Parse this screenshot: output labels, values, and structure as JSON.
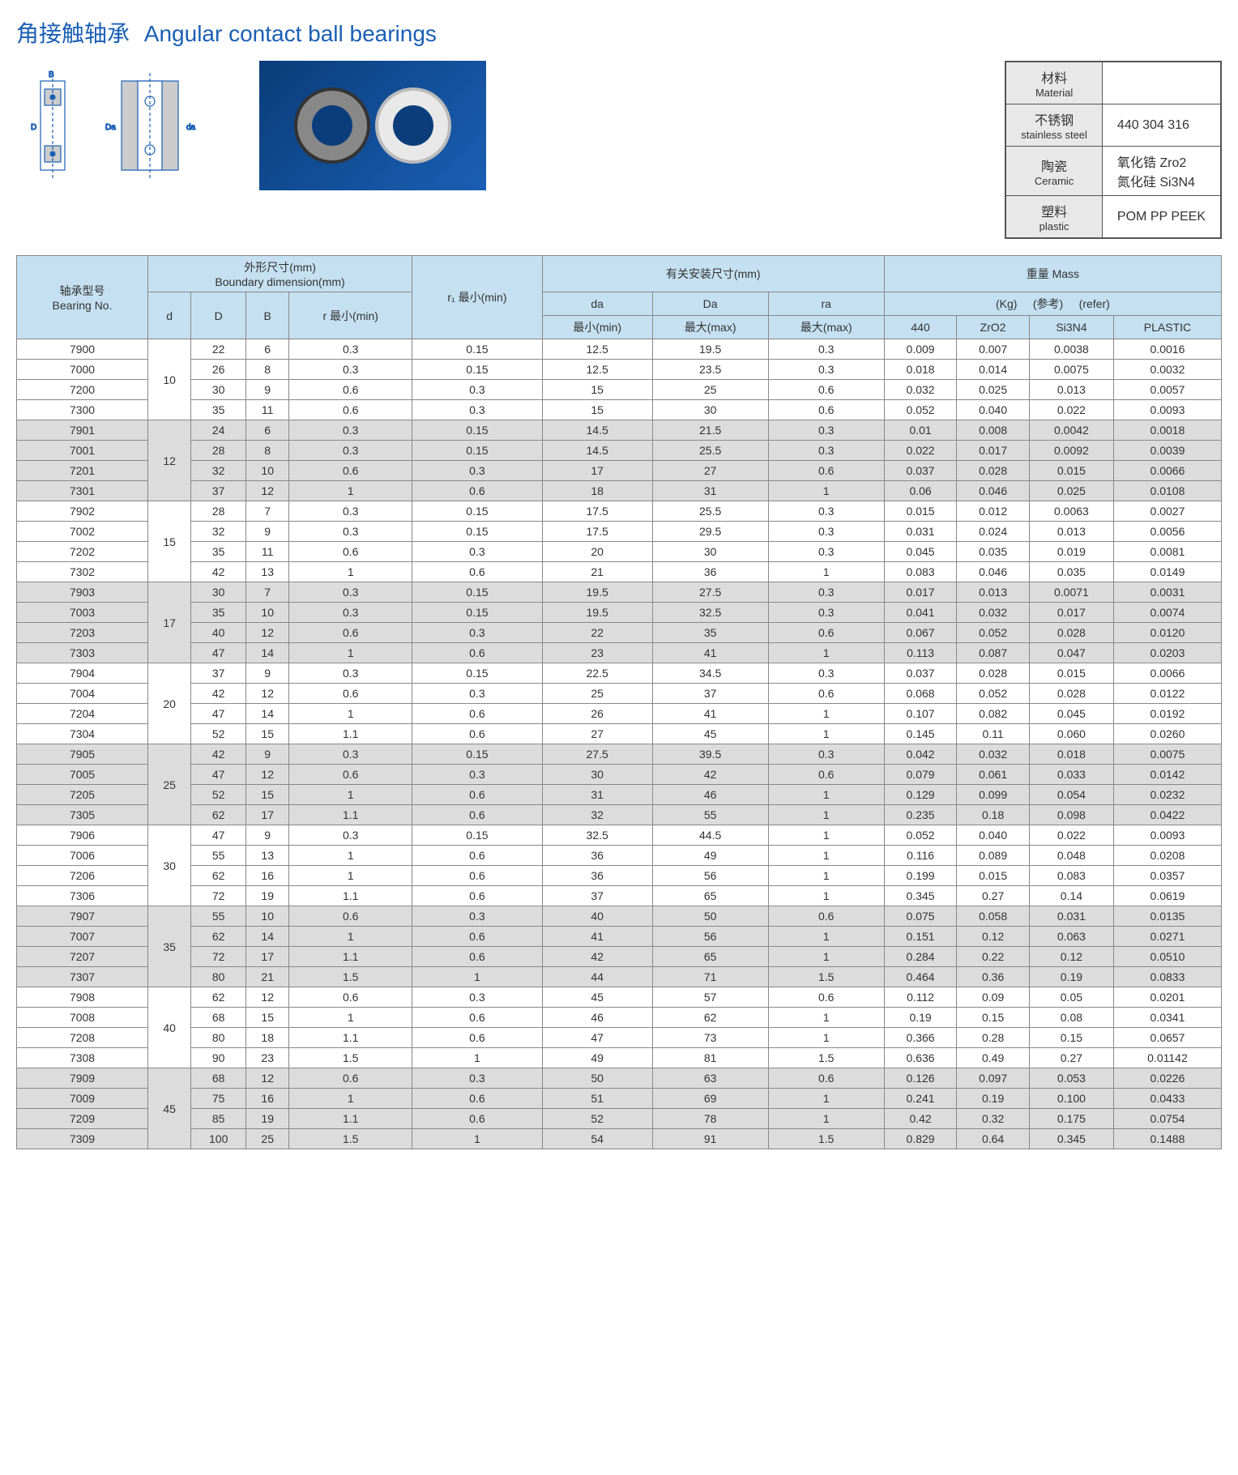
{
  "title_cn": "角接触轴承",
  "title_en": "Angular contact ball bearings",
  "colors": {
    "title": "#1a5fb4",
    "header_bg": "#c5e0f0",
    "shade_bg": "#dcdcdc",
    "border": "#888888"
  },
  "material_table": {
    "rows": [
      {
        "label_cn": "材料",
        "label_en": "Material",
        "value": ""
      },
      {
        "label_cn": "不锈钢",
        "label_en": "stainless steel",
        "value": "440 304 316"
      },
      {
        "label_cn": "陶瓷",
        "label_en": "Ceramic",
        "value": "氧化锆 Zro2\n氮化硅 Si3N4"
      },
      {
        "label_cn": "塑料",
        "label_en": "plastic",
        "value": "POM PP PEEK"
      }
    ]
  },
  "main_table": {
    "headers": {
      "bearing_no_cn": "轴承型号",
      "bearing_no_en": "Bearing No.",
      "boundary_cn": "外形尺寸(mm)",
      "boundary_en": "Boundary dimension(mm)",
      "d": "d",
      "D": "D",
      "B": "B",
      "r_min": "r 最小(min)",
      "r1_min": "r₁ 最小(min)",
      "mounting_cn": "有关安装尺寸(mm)",
      "da": "da",
      "Da": "Da",
      "ra": "ra",
      "da_min": "最小(min)",
      "Da_max": "最大(max)",
      "ra_max": "最大(max)",
      "mass_cn": "重量 Mass",
      "kg": "(Kg)",
      "ref_cn": "(参考)",
      "ref_en": "(refer)",
      "c_440": "440",
      "c_zro2": "ZrO2",
      "c_si3n4": "Si3N4",
      "c_plastic": "PLASTIC"
    },
    "groups": [
      {
        "d": "10",
        "shade": false,
        "rows": [
          {
            "no": "7900",
            "D": "22",
            "B": "6",
            "r": "0.3",
            "r1": "0.15",
            "da": "12.5",
            "Da": "19.5",
            "ra": "0.3",
            "m440": "0.009",
            "zro2": "0.007",
            "si3n4": "0.0038",
            "plastic": "0.0016"
          },
          {
            "no": "7000",
            "D": "26",
            "B": "8",
            "r": "0.3",
            "r1": "0.15",
            "da": "12.5",
            "Da": "23.5",
            "ra": "0.3",
            "m440": "0.018",
            "zro2": "0.014",
            "si3n4": "0.0075",
            "plastic": "0.0032"
          },
          {
            "no": "7200",
            "D": "30",
            "B": "9",
            "r": "0.6",
            "r1": "0.3",
            "da": "15",
            "Da": "25",
            "ra": "0.6",
            "m440": "0.032",
            "zro2": "0.025",
            "si3n4": "0.013",
            "plastic": "0.0057"
          },
          {
            "no": "7300",
            "D": "35",
            "B": "11",
            "r": "0.6",
            "r1": "0.3",
            "da": "15",
            "Da": "30",
            "ra": "0.6",
            "m440": "0.052",
            "zro2": "0.040",
            "si3n4": "0.022",
            "plastic": "0.0093"
          }
        ]
      },
      {
        "d": "12",
        "shade": true,
        "rows": [
          {
            "no": "7901",
            "D": "24",
            "B": "6",
            "r": "0.3",
            "r1": "0.15",
            "da": "14.5",
            "Da": "21.5",
            "ra": "0.3",
            "m440": "0.01",
            "zro2": "0.008",
            "si3n4": "0.0042",
            "plastic": "0.0018"
          },
          {
            "no": "7001",
            "D": "28",
            "B": "8",
            "r": "0.3",
            "r1": "0.15",
            "da": "14.5",
            "Da": "25.5",
            "ra": "0.3",
            "m440": "0.022",
            "zro2": "0.017",
            "si3n4": "0.0092",
            "plastic": "0.0039"
          },
          {
            "no": "7201",
            "D": "32",
            "B": "10",
            "r": "0.6",
            "r1": "0.3",
            "da": "17",
            "Da": "27",
            "ra": "0.6",
            "m440": "0.037",
            "zro2": "0.028",
            "si3n4": "0.015",
            "plastic": "0.0066"
          },
          {
            "no": "7301",
            "D": "37",
            "B": "12",
            "r": "1",
            "r1": "0.6",
            "da": "18",
            "Da": "31",
            "ra": "1",
            "m440": "0.06",
            "zro2": "0.046",
            "si3n4": "0.025",
            "plastic": "0.0108"
          }
        ]
      },
      {
        "d": "15",
        "shade": false,
        "rows": [
          {
            "no": "7902",
            "D": "28",
            "B": "7",
            "r": "0.3",
            "r1": "0.15",
            "da": "17.5",
            "Da": "25.5",
            "ra": "0.3",
            "m440": "0.015",
            "zro2": "0.012",
            "si3n4": "0.0063",
            "plastic": "0.0027"
          },
          {
            "no": "7002",
            "D": "32",
            "B": "9",
            "r": "0.3",
            "r1": "0.15",
            "da": "17.5",
            "Da": "29.5",
            "ra": "0.3",
            "m440": "0.031",
            "zro2": "0.024",
            "si3n4": "0.013",
            "plastic": "0.0056"
          },
          {
            "no": "7202",
            "D": "35",
            "B": "11",
            "r": "0.6",
            "r1": "0.3",
            "da": "20",
            "Da": "30",
            "ra": "0.3",
            "m440": "0.045",
            "zro2": "0.035",
            "si3n4": "0.019",
            "plastic": "0.0081"
          },
          {
            "no": "7302",
            "D": "42",
            "B": "13",
            "r": "1",
            "r1": "0.6",
            "da": "21",
            "Da": "36",
            "ra": "1",
            "m440": "0.083",
            "zro2": "0.046",
            "si3n4": "0.035",
            "plastic": "0.0149"
          }
        ]
      },
      {
        "d": "17",
        "shade": true,
        "rows": [
          {
            "no": "7903",
            "D": "30",
            "B": "7",
            "r": "0.3",
            "r1": "0.15",
            "da": "19.5",
            "Da": "27.5",
            "ra": "0.3",
            "m440": "0.017",
            "zro2": "0.013",
            "si3n4": "0.0071",
            "plastic": "0.0031"
          },
          {
            "no": "7003",
            "D": "35",
            "B": "10",
            "r": "0.3",
            "r1": "0.15",
            "da": "19.5",
            "Da": "32.5",
            "ra": "0.3",
            "m440": "0.041",
            "zro2": "0.032",
            "si3n4": "0.017",
            "plastic": "0.0074"
          },
          {
            "no": "7203",
            "D": "40",
            "B": "12",
            "r": "0.6",
            "r1": "0.3",
            "da": "22",
            "Da": "35",
            "ra": "0.6",
            "m440": "0.067",
            "zro2": "0.052",
            "si3n4": "0.028",
            "plastic": "0.0120"
          },
          {
            "no": "7303",
            "D": "47",
            "B": "14",
            "r": "1",
            "r1": "0.6",
            "da": "23",
            "Da": "41",
            "ra": "1",
            "m440": "0.113",
            "zro2": "0.087",
            "si3n4": "0.047",
            "plastic": "0.0203"
          }
        ]
      },
      {
        "d": "20",
        "shade": false,
        "rows": [
          {
            "no": "7904",
            "D": "37",
            "B": "9",
            "r": "0.3",
            "r1": "0.15",
            "da": "22.5",
            "Da": "34.5",
            "ra": "0.3",
            "m440": "0.037",
            "zro2": "0.028",
            "si3n4": "0.015",
            "plastic": "0.0066"
          },
          {
            "no": "7004",
            "D": "42",
            "B": "12",
            "r": "0.6",
            "r1": "0.3",
            "da": "25",
            "Da": "37",
            "ra": "0.6",
            "m440": "0.068",
            "zro2": "0.052",
            "si3n4": "0.028",
            "plastic": "0.0122"
          },
          {
            "no": "7204",
            "D": "47",
            "B": "14",
            "r": "1",
            "r1": "0.6",
            "da": "26",
            "Da": "41",
            "ra": "1",
            "m440": "0.107",
            "zro2": "0.082",
            "si3n4": "0.045",
            "plastic": "0.0192"
          },
          {
            "no": "7304",
            "D": "52",
            "B": "15",
            "r": "1.1",
            "r1": "0.6",
            "da": "27",
            "Da": "45",
            "ra": "1",
            "m440": "0.145",
            "zro2": "0.11",
            "si3n4": "0.060",
            "plastic": "0.0260"
          }
        ]
      },
      {
        "d": "25",
        "shade": true,
        "rows": [
          {
            "no": "7905",
            "D": "42",
            "B": "9",
            "r": "0.3",
            "r1": "0.15",
            "da": "27.5",
            "Da": "39.5",
            "ra": "0.3",
            "m440": "0.042",
            "zro2": "0.032",
            "si3n4": "0.018",
            "plastic": "0.0075"
          },
          {
            "no": "7005",
            "D": "47",
            "B": "12",
            "r": "0.6",
            "r1": "0.3",
            "da": "30",
            "Da": "42",
            "ra": "0.6",
            "m440": "0.079",
            "zro2": "0.061",
            "si3n4": "0.033",
            "plastic": "0.0142"
          },
          {
            "no": "7205",
            "D": "52",
            "B": "15",
            "r": "1",
            "r1": "0.6",
            "da": "31",
            "Da": "46",
            "ra": "1",
            "m440": "0.129",
            "zro2": "0.099",
            "si3n4": "0.054",
            "plastic": "0.0232"
          },
          {
            "no": "7305",
            "D": "62",
            "B": "17",
            "r": "1.1",
            "r1": "0.6",
            "da": "32",
            "Da": "55",
            "ra": "1",
            "m440": "0.235",
            "zro2": "0.18",
            "si3n4": "0.098",
            "plastic": "0.0422"
          }
        ]
      },
      {
        "d": "30",
        "shade": false,
        "rows": [
          {
            "no": "7906",
            "D": "47",
            "B": "9",
            "r": "0.3",
            "r1": "0.15",
            "da": "32.5",
            "Da": "44.5",
            "ra": "1",
            "m440": "0.052",
            "zro2": "0.040",
            "si3n4": "0.022",
            "plastic": "0.0093"
          },
          {
            "no": "7006",
            "D": "55",
            "B": "13",
            "r": "1",
            "r1": "0.6",
            "da": "36",
            "Da": "49",
            "ra": "1",
            "m440": "0.116",
            "zro2": "0.089",
            "si3n4": "0.048",
            "plastic": "0.0208"
          },
          {
            "no": "7206",
            "D": "62",
            "B": "16",
            "r": "1",
            "r1": "0.6",
            "da": "36",
            "Da": "56",
            "ra": "1",
            "m440": "0.199",
            "zro2": "0.015",
            "si3n4": "0.083",
            "plastic": "0.0357"
          },
          {
            "no": "7306",
            "D": "72",
            "B": "19",
            "r": "1.1",
            "r1": "0.6",
            "da": "37",
            "Da": "65",
            "ra": "1",
            "m440": "0.345",
            "zro2": "0.27",
            "si3n4": "0.14",
            "plastic": "0.0619"
          }
        ]
      },
      {
        "d": "35",
        "shade": true,
        "rows": [
          {
            "no": "7907",
            "D": "55",
            "B": "10",
            "r": "0.6",
            "r1": "0.3",
            "da": "40",
            "Da": "50",
            "ra": "0.6",
            "m440": "0.075",
            "zro2": "0.058",
            "si3n4": "0.031",
            "plastic": "0.0135"
          },
          {
            "no": "7007",
            "D": "62",
            "B": "14",
            "r": "1",
            "r1": "0.6",
            "da": "41",
            "Da": "56",
            "ra": "1",
            "m440": "0.151",
            "zro2": "0.12",
            "si3n4": "0.063",
            "plastic": "0.0271"
          },
          {
            "no": "7207",
            "D": "72",
            "B": "17",
            "r": "1.1",
            "r1": "0.6",
            "da": "42",
            "Da": "65",
            "ra": "1",
            "m440": "0.284",
            "zro2": "0.22",
            "si3n4": "0.12",
            "plastic": "0.0510"
          },
          {
            "no": "7307",
            "D": "80",
            "B": "21",
            "r": "1.5",
            "r1": "1",
            "da": "44",
            "Da": "71",
            "ra": "1.5",
            "m440": "0.464",
            "zro2": "0.36",
            "si3n4": "0.19",
            "plastic": "0.0833"
          }
        ]
      },
      {
        "d": "40",
        "shade": false,
        "rows": [
          {
            "no": "7908",
            "D": "62",
            "B": "12",
            "r": "0.6",
            "r1": "0.3",
            "da": "45",
            "Da": "57",
            "ra": "0.6",
            "m440": "0.112",
            "zro2": "0.09",
            "si3n4": "0.05",
            "plastic": "0.0201"
          },
          {
            "no": "7008",
            "D": "68",
            "B": "15",
            "r": "1",
            "r1": "0.6",
            "da": "46",
            "Da": "62",
            "ra": "1",
            "m440": "0.19",
            "zro2": "0.15",
            "si3n4": "0.08",
            "plastic": "0.0341"
          },
          {
            "no": "7208",
            "D": "80",
            "B": "18",
            "r": "1.1",
            "r1": "0.6",
            "da": "47",
            "Da": "73",
            "ra": "1",
            "m440": "0.366",
            "zro2": "0.28",
            "si3n4": "0.15",
            "plastic": "0.0657"
          },
          {
            "no": "7308",
            "D": "90",
            "B": "23",
            "r": "1.5",
            "r1": "1",
            "da": "49",
            "Da": "81",
            "ra": "1.5",
            "m440": "0.636",
            "zro2": "0.49",
            "si3n4": "0.27",
            "plastic": "0.01142"
          }
        ]
      },
      {
        "d": "45",
        "shade": true,
        "rows": [
          {
            "no": "7909",
            "D": "68",
            "B": "12",
            "r": "0.6",
            "r1": "0.3",
            "da": "50",
            "Da": "63",
            "ra": "0.6",
            "m440": "0.126",
            "zro2": "0.097",
            "si3n4": "0.053",
            "plastic": "0.0226"
          },
          {
            "no": "7009",
            "D": "75",
            "B": "16",
            "r": "1",
            "r1": "0.6",
            "da": "51",
            "Da": "69",
            "ra": "1",
            "m440": "0.241",
            "zro2": "0.19",
            "si3n4": "0.100",
            "plastic": "0.0433"
          },
          {
            "no": "7209",
            "D": "85",
            "B": "19",
            "r": "1.1",
            "r1": "0.6",
            "da": "52",
            "Da": "78",
            "ra": "1",
            "m440": "0.42",
            "zro2": "0.32",
            "si3n4": "0.175",
            "plastic": "0.0754"
          },
          {
            "no": "7309",
            "D": "100",
            "B": "25",
            "r": "1.5",
            "r1": "1",
            "da": "54",
            "Da": "91",
            "ra": "1.5",
            "m440": "0.829",
            "zro2": "0.64",
            "si3n4": "0.345",
            "plastic": "0.1488"
          }
        ]
      }
    ]
  }
}
